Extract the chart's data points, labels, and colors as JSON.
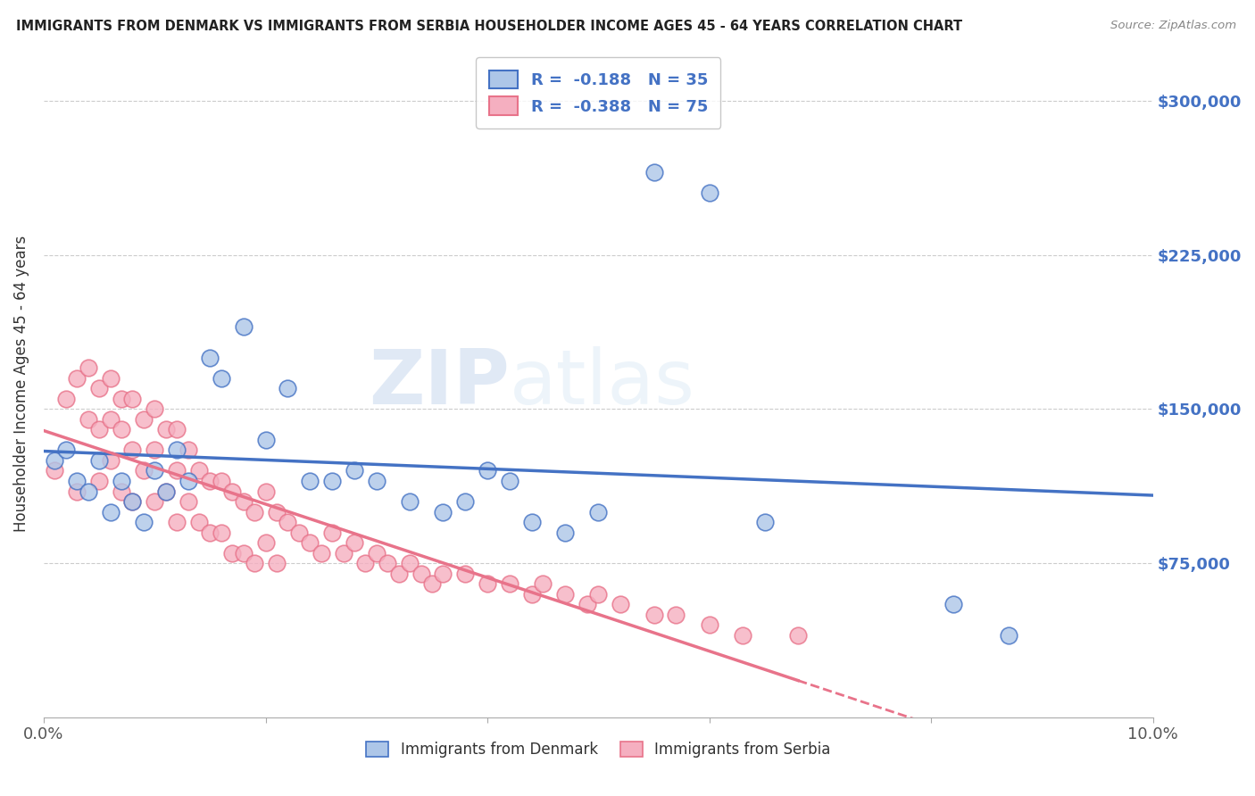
{
  "title": "IMMIGRANTS FROM DENMARK VS IMMIGRANTS FROM SERBIA HOUSEHOLDER INCOME AGES 45 - 64 YEARS CORRELATION CHART",
  "source": "Source: ZipAtlas.com",
  "ylabel": "Householder Income Ages 45 - 64 years",
  "xlim": [
    0.0,
    0.1
  ],
  "ylim": [
    0,
    325000
  ],
  "yticks": [
    0,
    75000,
    150000,
    225000,
    300000
  ],
  "ytick_labels": [
    "",
    "$75,000",
    "$150,000",
    "$225,000",
    "$300,000"
  ],
  "xticks": [
    0.0,
    0.02,
    0.04,
    0.06,
    0.08,
    0.1
  ],
  "xtick_labels": [
    "0.0%",
    "",
    "",
    "",
    "",
    "10.0%"
  ],
  "denmark_R": -0.188,
  "denmark_N": 35,
  "serbia_R": -0.388,
  "serbia_N": 75,
  "denmark_color": "#adc6e8",
  "serbia_color": "#f5afc0",
  "denmark_line_color": "#4472c4",
  "serbia_line_color": "#e8738a",
  "background_color": "#ffffff",
  "watermark_zip": "ZIP",
  "watermark_atlas": "atlas",
  "denmark_x": [
    0.001,
    0.002,
    0.003,
    0.004,
    0.005,
    0.006,
    0.007,
    0.008,
    0.009,
    0.01,
    0.011,
    0.012,
    0.013,
    0.015,
    0.016,
    0.018,
    0.02,
    0.022,
    0.024,
    0.026,
    0.028,
    0.03,
    0.033,
    0.036,
    0.038,
    0.04,
    0.042,
    0.044,
    0.047,
    0.05,
    0.055,
    0.06,
    0.065,
    0.082,
    0.087
  ],
  "denmark_y": [
    125000,
    130000,
    115000,
    110000,
    125000,
    100000,
    115000,
    105000,
    95000,
    120000,
    110000,
    130000,
    115000,
    175000,
    165000,
    190000,
    135000,
    160000,
    115000,
    115000,
    120000,
    115000,
    105000,
    100000,
    105000,
    120000,
    115000,
    95000,
    90000,
    100000,
    265000,
    255000,
    95000,
    55000,
    40000
  ],
  "serbia_x": [
    0.001,
    0.002,
    0.003,
    0.003,
    0.004,
    0.004,
    0.005,
    0.005,
    0.005,
    0.006,
    0.006,
    0.006,
    0.007,
    0.007,
    0.007,
    0.008,
    0.008,
    0.008,
    0.009,
    0.009,
    0.01,
    0.01,
    0.01,
    0.011,
    0.011,
    0.012,
    0.012,
    0.012,
    0.013,
    0.013,
    0.014,
    0.014,
    0.015,
    0.015,
    0.016,
    0.016,
    0.017,
    0.017,
    0.018,
    0.018,
    0.019,
    0.019,
    0.02,
    0.02,
    0.021,
    0.021,
    0.022,
    0.023,
    0.024,
    0.025,
    0.026,
    0.027,
    0.028,
    0.029,
    0.03,
    0.031,
    0.032,
    0.033,
    0.034,
    0.035,
    0.036,
    0.038,
    0.04,
    0.042,
    0.044,
    0.045,
    0.047,
    0.049,
    0.05,
    0.052,
    0.055,
    0.057,
    0.06,
    0.063,
    0.068
  ],
  "serbia_y": [
    120000,
    155000,
    165000,
    110000,
    170000,
    145000,
    160000,
    140000,
    115000,
    165000,
    145000,
    125000,
    155000,
    140000,
    110000,
    155000,
    130000,
    105000,
    145000,
    120000,
    150000,
    130000,
    105000,
    140000,
    110000,
    140000,
    120000,
    95000,
    130000,
    105000,
    120000,
    95000,
    115000,
    90000,
    115000,
    90000,
    110000,
    80000,
    105000,
    80000,
    100000,
    75000,
    110000,
    85000,
    100000,
    75000,
    95000,
    90000,
    85000,
    80000,
    90000,
    80000,
    85000,
    75000,
    80000,
    75000,
    70000,
    75000,
    70000,
    65000,
    70000,
    70000,
    65000,
    65000,
    60000,
    65000,
    60000,
    55000,
    60000,
    55000,
    50000,
    50000,
    45000,
    40000,
    40000
  ]
}
